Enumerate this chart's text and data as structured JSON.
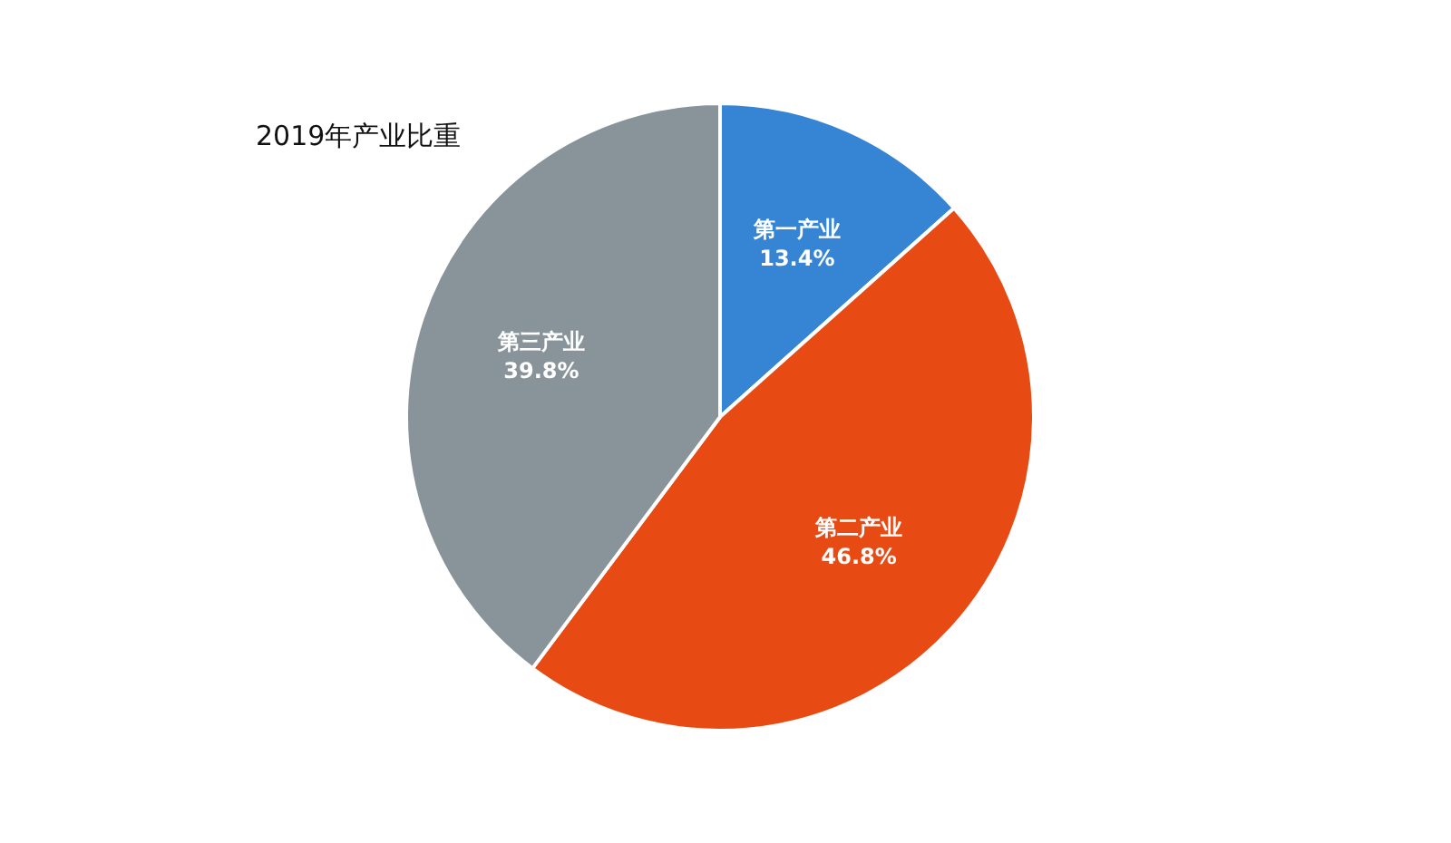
{
  "chart_data": {
    "type": "pie",
    "title": "2019年产业比重",
    "categories": [
      "第一产业",
      "第二产业",
      "第三产业"
    ],
    "values": [
      13.4,
      46.8,
      39.8
    ],
    "value_labels": [
      "13.4%",
      "46.8%",
      "39.8%"
    ],
    "colors": [
      "#3585d4",
      "#e84a14",
      "#89939a"
    ],
    "legend": false
  }
}
